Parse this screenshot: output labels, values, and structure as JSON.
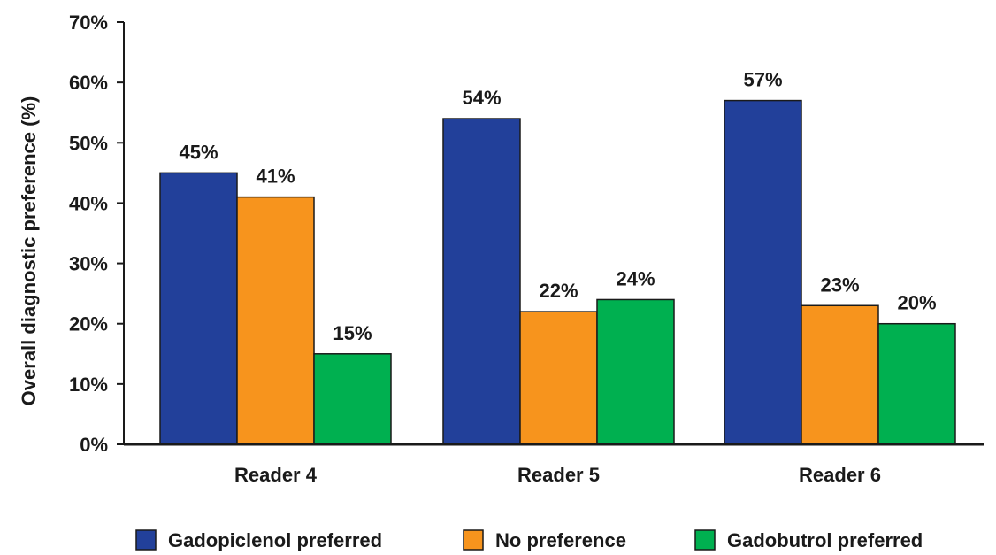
{
  "chart_data": {
    "type": "bar",
    "ylabel": "Overall diagnostic preference (%)",
    "xlabel": "",
    "ylim": [
      0,
      70
    ],
    "yticks": [
      "0%",
      "10%",
      "20%",
      "30%",
      "40%",
      "50%",
      "60%",
      "70%"
    ],
    "categories": [
      "Reader 4",
      "Reader 5",
      "Reader 6"
    ],
    "series": [
      {
        "name": "Gadopiclenol preferred",
        "color": "#22409a",
        "values": [
          45,
          54,
          57
        ],
        "labels": [
          "45%",
          "54%",
          "57%"
        ]
      },
      {
        "name": "No preference",
        "color": "#f7941d",
        "values": [
          41,
          22,
          23
        ],
        "labels": [
          "41%",
          "22%",
          "23%"
        ]
      },
      {
        "name": "Gadobutrol preferred",
        "color": "#00b050",
        "values": [
          15,
          24,
          20
        ],
        "labels": [
          "15%",
          "24%",
          "20%"
        ]
      }
    ],
    "legend_position": "bottom",
    "grid": false
  }
}
